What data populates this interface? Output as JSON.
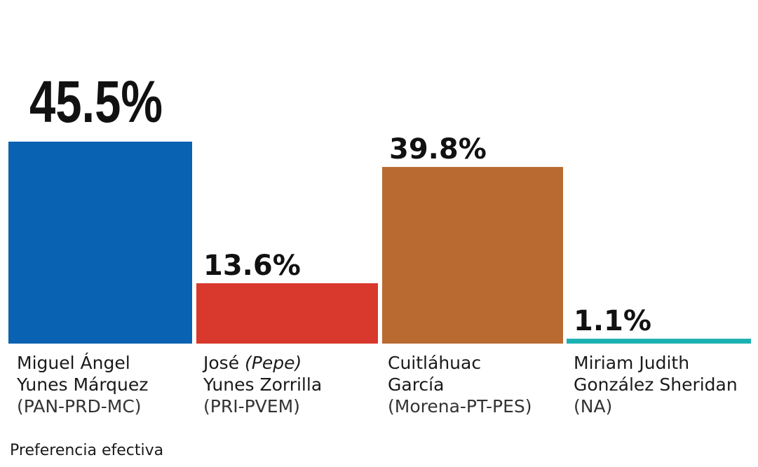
{
  "chart_data": {
    "type": "bar",
    "title": "",
    "ylim": [
      0,
      50
    ],
    "categories": [
      "Miguel Ángel Yunes Márquez (PAN-PRD-MC)",
      "José (Pepe) Yunes Zorrilla (PRI-PVEM)",
      "Cuitláhuac García (Morena-PT-PES)",
      "Miriam Judith González Sheridan (NA)"
    ],
    "values": [
      45.5,
      13.6,
      39.8,
      1.1
    ],
    "value_labels": [
      "45.5%",
      "13.6%",
      "39.8%",
      "1.1%"
    ],
    "colors": [
      "#0a62b2",
      "#d9382c",
      "#b86a31",
      "#1db1b2"
    ],
    "candidates": [
      {
        "line1": "Miguel Ángel",
        "line2": "Yunes Márquez",
        "party": "(PAN-PRD-MC)"
      },
      {
        "line1_a": "José ",
        "line1_b": "(Pepe)",
        "line2": "Yunes Zorrilla",
        "party": "(PRI-PVEM)"
      },
      {
        "line1": "Cuitláhuac",
        "line2": "García",
        "party": "(Morena-PT-PES)"
      },
      {
        "line1": "Miriam Judith",
        "line2": "González Sheridan",
        "party": "(NA)"
      }
    ],
    "footnote": "Preferencia efectiva"
  }
}
